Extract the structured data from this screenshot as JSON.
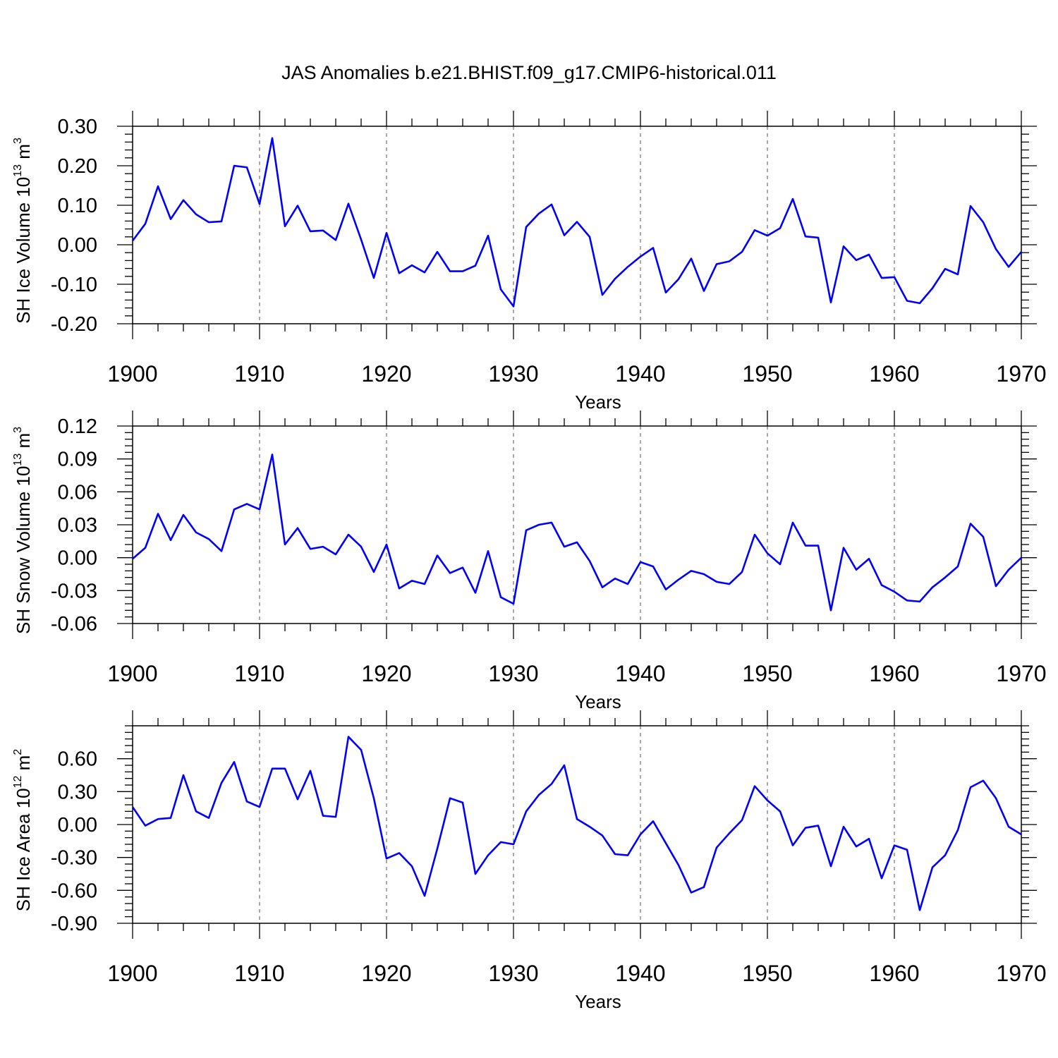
{
  "title": "JAS Anomalies b.e21.BHIST.f09_g17.CMIP6-historical.011",
  "colors": {
    "line": "#0000ff",
    "axes": "#000000",
    "grid": "#555555"
  },
  "chart_data": [
    {
      "type": "line",
      "xlabel": "Years",
      "ylabel": "SH Ice Volume 10",
      "ylabel_sup": "13",
      "ylabel_unit": " m",
      "ylabel_unit_sup": "3",
      "xlim": [
        1900,
        1970
      ],
      "ylim": [
        -0.2,
        0.3
      ],
      "xticks": [
        1900,
        1910,
        1920,
        1930,
        1940,
        1950,
        1960,
        1970
      ],
      "yticks": [
        -0.2,
        -0.1,
        0.0,
        0.1,
        0.2,
        0.3
      ],
      "ytick_labels": [
        "-0.20",
        "-0.10",
        "0.00",
        "0.10",
        "0.20",
        "0.30"
      ],
      "grid": "vertical dashed at decades",
      "series": [
        {
          "x": [
            1900,
            1901,
            1902,
            1903,
            1904,
            1905,
            1906,
            1907,
            1908,
            1909,
            1910,
            1911,
            1912,
            1913,
            1914,
            1915,
            1916,
            1917,
            1918,
            1919,
            1920,
            1921,
            1922,
            1923,
            1924,
            1925,
            1926,
            1927,
            1928,
            1929,
            1930,
            1931,
            1932,
            1933,
            1934,
            1935,
            1936,
            1937,
            1938,
            1939,
            1940,
            1941,
            1942,
            1943,
            1944,
            1945,
            1946,
            1947,
            1948,
            1949,
            1950,
            1951,
            1952,
            1953,
            1954,
            1955,
            1956,
            1957,
            1958,
            1959,
            1960,
            1961,
            1962,
            1963,
            1964,
            1965,
            1966,
            1967,
            1968,
            1969,
            1970
          ],
          "values": [
            0.01,
            0.053,
            0.148,
            0.065,
            0.113,
            0.077,
            0.057,
            0.059,
            0.2,
            0.196,
            0.103,
            0.27,
            0.047,
            0.099,
            0.034,
            0.036,
            0.012,
            0.104,
            0.013,
            -0.084,
            0.03,
            -0.072,
            -0.052,
            -0.07,
            -0.018,
            -0.067,
            -0.067,
            -0.053,
            0.023,
            -0.113,
            -0.156,
            0.045,
            0.079,
            0.102,
            0.024,
            0.058,
            0.02,
            -0.127,
            -0.086,
            -0.056,
            -0.03,
            -0.008,
            -0.121,
            -0.087,
            -0.035,
            -0.117,
            -0.049,
            -0.042,
            -0.018,
            0.037,
            0.023,
            0.042,
            0.116,
            0.021,
            0.018,
            -0.146,
            -0.004,
            -0.039,
            -0.025,
            -0.084,
            -0.082,
            -0.142,
            -0.148,
            -0.11,
            -0.061,
            -0.075,
            0.098,
            0.057,
            -0.011,
            -0.056,
            -0.018
          ]
        }
      ]
    },
    {
      "type": "line",
      "xlabel": "Years",
      "ylabel": "SH Snow Volume 10",
      "ylabel_sup": "13",
      "ylabel_unit": " m",
      "ylabel_unit_sup": "3",
      "xlim": [
        1900,
        1970
      ],
      "ylim": [
        -0.06,
        0.12
      ],
      "xticks": [
        1900,
        1910,
        1920,
        1930,
        1940,
        1950,
        1960,
        1970
      ],
      "yticks": [
        -0.06,
        -0.03,
        0.0,
        0.03,
        0.06,
        0.09,
        0.12
      ],
      "ytick_labels": [
        "-0.06",
        "-0.03",
        "0.00",
        "0.03",
        "0.06",
        "0.09",
        "0.12"
      ],
      "grid": "vertical dashed at decades",
      "series": [
        {
          "x": [
            1900,
            1901,
            1902,
            1903,
            1904,
            1905,
            1906,
            1907,
            1908,
            1909,
            1910,
            1911,
            1912,
            1913,
            1914,
            1915,
            1916,
            1917,
            1918,
            1919,
            1920,
            1921,
            1922,
            1923,
            1924,
            1925,
            1926,
            1927,
            1928,
            1929,
            1930,
            1931,
            1932,
            1933,
            1934,
            1935,
            1936,
            1937,
            1938,
            1939,
            1940,
            1941,
            1942,
            1943,
            1944,
            1945,
            1946,
            1947,
            1948,
            1949,
            1950,
            1951,
            1952,
            1953,
            1954,
            1955,
            1956,
            1957,
            1958,
            1959,
            1960,
            1961,
            1962,
            1963,
            1964,
            1965,
            1966,
            1967,
            1968,
            1969,
            1970
          ],
          "values": [
            -0.001,
            0.009,
            0.04,
            0.016,
            0.039,
            0.023,
            0.017,
            0.006,
            0.044,
            0.049,
            0.044,
            0.094,
            0.012,
            0.027,
            0.008,
            0.01,
            0.003,
            0.021,
            0.01,
            -0.013,
            0.012,
            -0.028,
            -0.021,
            -0.024,
            0.002,
            -0.014,
            -0.009,
            -0.032,
            0.006,
            -0.036,
            -0.042,
            0.025,
            0.03,
            0.032,
            0.01,
            0.014,
            -0.003,
            -0.027,
            -0.019,
            -0.024,
            -0.004,
            -0.008,
            -0.029,
            -0.02,
            -0.012,
            -0.015,
            -0.022,
            -0.024,
            -0.013,
            0.021,
            0.004,
            -0.006,
            0.032,
            0.011,
            0.011,
            -0.048,
            0.009,
            -0.011,
            -0.001,
            -0.025,
            -0.031,
            -0.039,
            -0.04,
            -0.027,
            -0.018,
            -0.008,
            0.031,
            0.019,
            -0.026,
            -0.011,
            0.0
          ]
        }
      ]
    },
    {
      "type": "line",
      "xlabel": "Years",
      "ylabel": "SH Ice Area 10",
      "ylabel_sup": "12",
      "ylabel_unit": " m",
      "ylabel_unit_sup": "2",
      "xlim": [
        1900,
        1970
      ],
      "ylim": [
        -0.9,
        0.9
      ],
      "xticks": [
        1900,
        1910,
        1920,
        1930,
        1940,
        1950,
        1960,
        1970
      ],
      "yticks": [
        -0.9,
        -0.6,
        -0.3,
        0.0,
        0.3,
        0.6
      ],
      "ytick_labels": [
        "-0.90",
        "-0.60",
        "-0.30",
        "0.00",
        "0.30",
        "0.60"
      ],
      "grid": "vertical dashed at decades",
      "series": [
        {
          "x": [
            1900,
            1901,
            1902,
            1903,
            1904,
            1905,
            1906,
            1907,
            1908,
            1909,
            1910,
            1911,
            1912,
            1913,
            1914,
            1915,
            1916,
            1917,
            1918,
            1919,
            1920,
            1921,
            1922,
            1923,
            1924,
            1925,
            1926,
            1927,
            1928,
            1929,
            1930,
            1931,
            1932,
            1933,
            1934,
            1935,
            1936,
            1937,
            1938,
            1939,
            1940,
            1941,
            1942,
            1943,
            1944,
            1945,
            1946,
            1947,
            1948,
            1949,
            1950,
            1951,
            1952,
            1953,
            1954,
            1955,
            1956,
            1957,
            1958,
            1959,
            1960,
            1961,
            1962,
            1963,
            1964,
            1965,
            1966,
            1967,
            1968,
            1969,
            1970
          ],
          "values": [
            0.16,
            -0.01,
            0.05,
            0.06,
            0.45,
            0.12,
            0.06,
            0.38,
            0.57,
            0.21,
            0.16,
            0.51,
            0.51,
            0.23,
            0.49,
            0.08,
            0.07,
            0.8,
            0.68,
            0.24,
            -0.31,
            -0.26,
            -0.38,
            -0.65,
            -0.22,
            0.24,
            0.2,
            -0.45,
            -0.28,
            -0.16,
            -0.18,
            0.12,
            0.27,
            0.37,
            0.54,
            0.05,
            -0.02,
            -0.1,
            -0.27,
            -0.28,
            -0.09,
            0.03,
            -0.17,
            -0.37,
            -0.62,
            -0.57,
            -0.21,
            -0.08,
            0.04,
            0.35,
            0.22,
            0.12,
            -0.19,
            -0.03,
            -0.01,
            -0.38,
            -0.02,
            -0.2,
            -0.13,
            -0.49,
            -0.19,
            -0.23,
            -0.78,
            -0.39,
            -0.28,
            -0.05,
            0.34,
            0.4,
            0.24,
            -0.02,
            -0.09
          ]
        }
      ]
    }
  ]
}
